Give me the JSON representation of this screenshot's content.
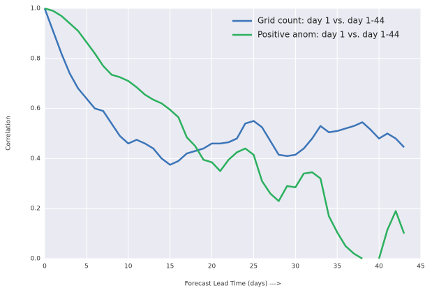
{
  "chart_data": {
    "type": "line",
    "xlabel": "Forecast Lead Time (days) --->",
    "ylabel": "Correlation",
    "x": [
      0,
      1,
      2,
      3,
      4,
      5,
      6,
      7,
      8,
      9,
      10,
      11,
      12,
      13,
      14,
      15,
      16,
      17,
      18,
      19,
      20,
      21,
      22,
      23,
      24,
      25,
      26,
      27,
      28,
      29,
      30,
      31,
      32,
      33,
      34,
      35,
      36,
      37,
      38,
      39,
      40,
      41,
      42,
      43
    ],
    "series": [
      {
        "name": "Grid count: day 1 vs. day 1-44",
        "color": "#3b75b8",
        "values": [
          1.0,
          0.91,
          0.82,
          0.74,
          0.68,
          0.64,
          0.6,
          0.59,
          0.54,
          0.49,
          0.46,
          0.475,
          0.46,
          0.44,
          0.4,
          0.375,
          0.39,
          0.42,
          0.43,
          0.44,
          0.46,
          0.46,
          0.465,
          0.48,
          0.54,
          0.55,
          0.525,
          0.47,
          0.415,
          0.41,
          0.415,
          0.44,
          0.48,
          0.53,
          0.505,
          0.51,
          0.52,
          0.53,
          0.545,
          0.515,
          0.48,
          0.5,
          0.48,
          0.445
        ]
      },
      {
        "name": "Positive anom: day 1 vs. day 1-44",
        "color": "#2bb05e",
        "values": [
          1.0,
          0.99,
          0.97,
          0.94,
          0.91,
          0.865,
          0.82,
          0.77,
          0.735,
          0.725,
          0.71,
          0.685,
          0.655,
          0.635,
          0.62,
          0.595,
          0.565,
          0.485,
          0.45,
          0.395,
          0.385,
          0.35,
          0.395,
          0.425,
          0.44,
          0.415,
          0.31,
          0.26,
          0.23,
          0.29,
          0.285,
          0.34,
          0.345,
          0.32,
          0.17,
          0.105,
          0.05,
          0.02,
          0.0,
          null,
          0.0,
          0.115,
          0.19,
          0.1
        ]
      }
    ],
    "xlim": [
      0,
      45
    ],
    "xticks": [
      0,
      5,
      10,
      15,
      20,
      25,
      30,
      35,
      40,
      45
    ],
    "ylim": [
      0,
      1
    ],
    "yticks": [
      {
        "value": 0,
        "label": "0.0"
      },
      0.2,
      0.4,
      0.6,
      0.8,
      {
        "value": 1,
        "label": "1.0"
      }
    ],
    "grid": true,
    "legend": "upper right"
  }
}
